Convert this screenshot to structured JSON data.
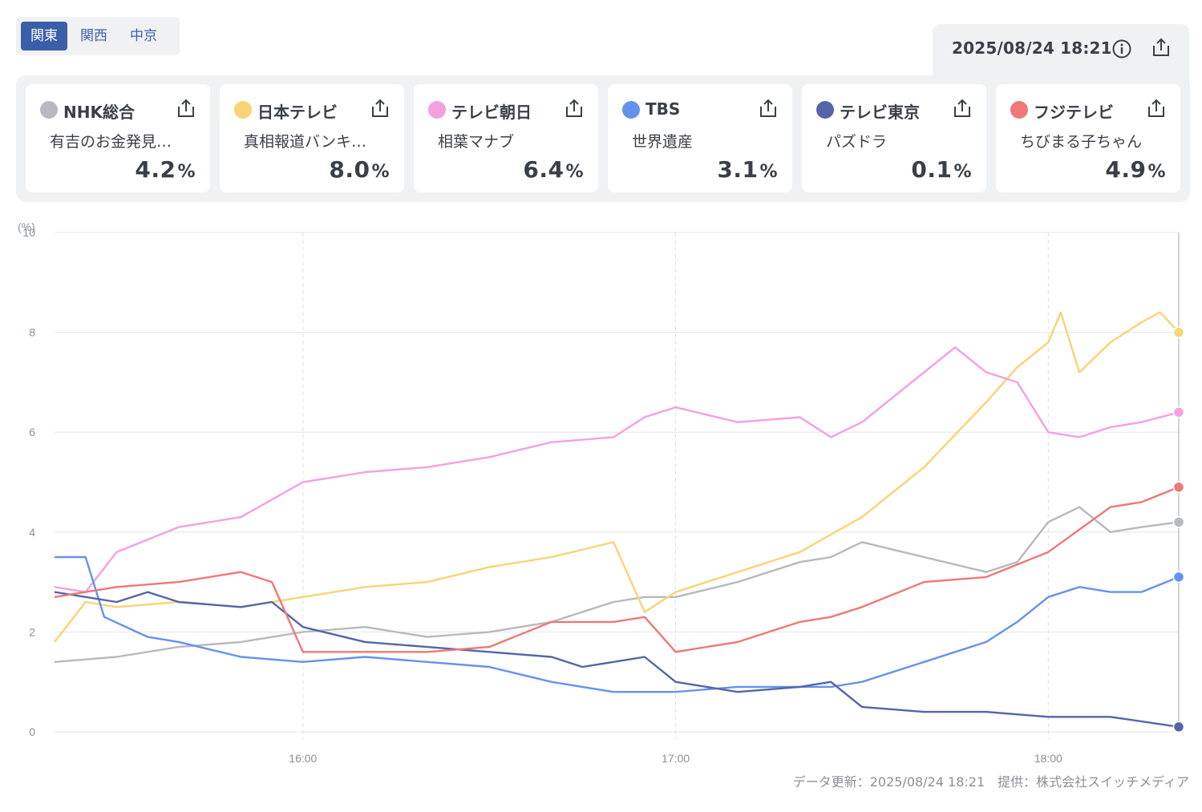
{
  "region_tabs": [
    {
      "label": "関東",
      "active": true
    },
    {
      "label": "関西",
      "active": false
    },
    {
      "label": "中京",
      "active": false
    }
  ],
  "timestamp": "2025/08/24 18:21",
  "icons": {
    "info": "info-icon",
    "share": "share-icon"
  },
  "channels": [
    {
      "name": "NHK総合",
      "program": "有吉のお金発見…",
      "value": "4.2",
      "unit": "%",
      "color": "#b6b9bf"
    },
    {
      "name": "日本テレビ",
      "program": "真相報道バンキ…",
      "value": "8.0",
      "unit": "%",
      "color": "#f9d374"
    },
    {
      "name": "テレビ朝日",
      "program": "相葉マナブ",
      "value": "6.4",
      "unit": "%",
      "color": "#f4a0e0"
    },
    {
      "name": "TBS",
      "program": "世界遺産",
      "value": "3.1",
      "unit": "%",
      "color": "#6592ec"
    },
    {
      "name": "テレビ東京",
      "program": "パズドラ",
      "value": "0.1",
      "unit": "%",
      "color": "#5465a8"
    },
    {
      "name": "フジテレビ",
      "program": "ちびまる子ちゃん",
      "value": "4.9",
      "unit": "%",
      "color": "#ef7777"
    }
  ],
  "chart_data": {
    "type": "line",
    "y_unit_label": "(%)",
    "ylim": [
      0,
      10
    ],
    "y_ticks": [
      0,
      2,
      4,
      6,
      8,
      10
    ],
    "x_ticks": [
      "16:00",
      "17:00",
      "18:00"
    ],
    "xlim": [
      "15:20",
      "18:21"
    ],
    "grid": true,
    "series": [
      {
        "name": "NHK総合",
        "color": "#b6b9bf",
        "points": [
          [
            "15:20",
            1.4
          ],
          [
            "15:30",
            1.5
          ],
          [
            "15:40",
            1.7
          ],
          [
            "15:50",
            1.8
          ],
          [
            "16:00",
            2.0
          ],
          [
            "16:10",
            2.1
          ],
          [
            "16:20",
            1.9
          ],
          [
            "16:30",
            2.0
          ],
          [
            "16:40",
            2.2
          ],
          [
            "16:50",
            2.6
          ],
          [
            "16:55",
            2.7
          ],
          [
            "17:00",
            2.7
          ],
          [
            "17:10",
            3.0
          ],
          [
            "17:20",
            3.4
          ],
          [
            "17:25",
            3.5
          ],
          [
            "17:30",
            3.8
          ],
          [
            "17:40",
            3.5
          ],
          [
            "17:50",
            3.2
          ],
          [
            "17:55",
            3.4
          ],
          [
            "18:00",
            4.2
          ],
          [
            "18:05",
            4.5
          ],
          [
            "18:10",
            4.0
          ],
          [
            "18:15",
            4.1
          ],
          [
            "18:21",
            4.2
          ]
        ]
      },
      {
        "name": "日本テレビ",
        "color": "#f9d374",
        "points": [
          [
            "15:20",
            1.8
          ],
          [
            "15:25",
            2.6
          ],
          [
            "15:30",
            2.5
          ],
          [
            "15:40",
            2.6
          ],
          [
            "15:50",
            2.5
          ],
          [
            "16:00",
            2.7
          ],
          [
            "16:10",
            2.9
          ],
          [
            "16:20",
            3.0
          ],
          [
            "16:30",
            3.3
          ],
          [
            "16:40",
            3.5
          ],
          [
            "16:50",
            3.8
          ],
          [
            "16:55",
            2.4
          ],
          [
            "17:00",
            2.8
          ],
          [
            "17:10",
            3.2
          ],
          [
            "17:20",
            3.6
          ],
          [
            "17:30",
            4.3
          ],
          [
            "17:40",
            5.3
          ],
          [
            "17:50",
            6.6
          ],
          [
            "17:55",
            7.3
          ],
          [
            "18:00",
            7.8
          ],
          [
            "18:02",
            8.4
          ],
          [
            "18:05",
            7.2
          ],
          [
            "18:10",
            7.8
          ],
          [
            "18:15",
            8.2
          ],
          [
            "18:18",
            8.4
          ],
          [
            "18:21",
            8.0
          ]
        ]
      },
      {
        "name": "テレビ朝日",
        "color": "#f4a0e0",
        "points": [
          [
            "15:20",
            2.9
          ],
          [
            "15:25",
            2.8
          ],
          [
            "15:30",
            3.6
          ],
          [
            "15:40",
            4.1
          ],
          [
            "15:50",
            4.3
          ],
          [
            "16:00",
            5.0
          ],
          [
            "16:10",
            5.2
          ],
          [
            "16:20",
            5.3
          ],
          [
            "16:30",
            5.5
          ],
          [
            "16:40",
            5.8
          ],
          [
            "16:50",
            5.9
          ],
          [
            "16:55",
            6.3
          ],
          [
            "17:00",
            6.5
          ],
          [
            "17:10",
            6.2
          ],
          [
            "17:20",
            6.3
          ],
          [
            "17:25",
            5.9
          ],
          [
            "17:30",
            6.2
          ],
          [
            "17:40",
            7.2
          ],
          [
            "17:45",
            7.7
          ],
          [
            "17:50",
            7.2
          ],
          [
            "17:55",
            7.0
          ],
          [
            "18:00",
            6.0
          ],
          [
            "18:05",
            5.9
          ],
          [
            "18:10",
            6.1
          ],
          [
            "18:15",
            6.2
          ],
          [
            "18:21",
            6.4
          ]
        ]
      },
      {
        "name": "TBS",
        "color": "#6592ec",
        "points": [
          [
            "15:20",
            3.5
          ],
          [
            "15:25",
            3.5
          ],
          [
            "15:28",
            2.3
          ],
          [
            "15:35",
            1.9
          ],
          [
            "15:40",
            1.8
          ],
          [
            "15:50",
            1.5
          ],
          [
            "16:00",
            1.4
          ],
          [
            "16:10",
            1.5
          ],
          [
            "16:20",
            1.4
          ],
          [
            "16:30",
            1.3
          ],
          [
            "16:40",
            1.0
          ],
          [
            "16:50",
            0.8
          ],
          [
            "17:00",
            0.8
          ],
          [
            "17:10",
            0.9
          ],
          [
            "17:20",
            0.9
          ],
          [
            "17:25",
            0.9
          ],
          [
            "17:30",
            1.0
          ],
          [
            "17:40",
            1.4
          ],
          [
            "17:50",
            1.8
          ],
          [
            "17:55",
            2.2
          ],
          [
            "18:00",
            2.7
          ],
          [
            "18:05",
            2.9
          ],
          [
            "18:10",
            2.8
          ],
          [
            "18:15",
            2.8
          ],
          [
            "18:21",
            3.1
          ]
        ]
      },
      {
        "name": "テレビ東京",
        "color": "#5465a8",
        "points": [
          [
            "15:20",
            2.8
          ],
          [
            "15:30",
            2.6
          ],
          [
            "15:35",
            2.8
          ],
          [
            "15:40",
            2.6
          ],
          [
            "15:50",
            2.5
          ],
          [
            "15:55",
            2.6
          ],
          [
            "16:00",
            2.1
          ],
          [
            "16:10",
            1.8
          ],
          [
            "16:20",
            1.7
          ],
          [
            "16:30",
            1.6
          ],
          [
            "16:40",
            1.5
          ],
          [
            "16:45",
            1.3
          ],
          [
            "16:50",
            1.4
          ],
          [
            "16:55",
            1.5
          ],
          [
            "17:00",
            1.0
          ],
          [
            "17:10",
            0.8
          ],
          [
            "17:20",
            0.9
          ],
          [
            "17:25",
            1.0
          ],
          [
            "17:30",
            0.5
          ],
          [
            "17:40",
            0.4
          ],
          [
            "17:50",
            0.4
          ],
          [
            "18:00",
            0.3
          ],
          [
            "18:10",
            0.3
          ],
          [
            "18:21",
            0.1
          ]
        ]
      },
      {
        "name": "フジテレビ",
        "color": "#ef7777",
        "points": [
          [
            "15:20",
            2.7
          ],
          [
            "15:30",
            2.9
          ],
          [
            "15:40",
            3.0
          ],
          [
            "15:50",
            3.2
          ],
          [
            "15:55",
            3.0
          ],
          [
            "16:00",
            1.6
          ],
          [
            "16:10",
            1.6
          ],
          [
            "16:20",
            1.6
          ],
          [
            "16:30",
            1.7
          ],
          [
            "16:40",
            2.2
          ],
          [
            "16:50",
            2.2
          ],
          [
            "16:55",
            2.3
          ],
          [
            "17:00",
            1.6
          ],
          [
            "17:10",
            1.8
          ],
          [
            "17:20",
            2.2
          ],
          [
            "17:25",
            2.3
          ],
          [
            "17:30",
            2.5
          ],
          [
            "17:40",
            3.0
          ],
          [
            "17:50",
            3.1
          ],
          [
            "18:00",
            3.6
          ],
          [
            "18:10",
            4.5
          ],
          [
            "18:15",
            4.6
          ],
          [
            "18:21",
            4.9
          ]
        ]
      }
    ]
  },
  "footer": "データ更新：2025/08/24 18:21　提供：株式会社スイッチメディア"
}
